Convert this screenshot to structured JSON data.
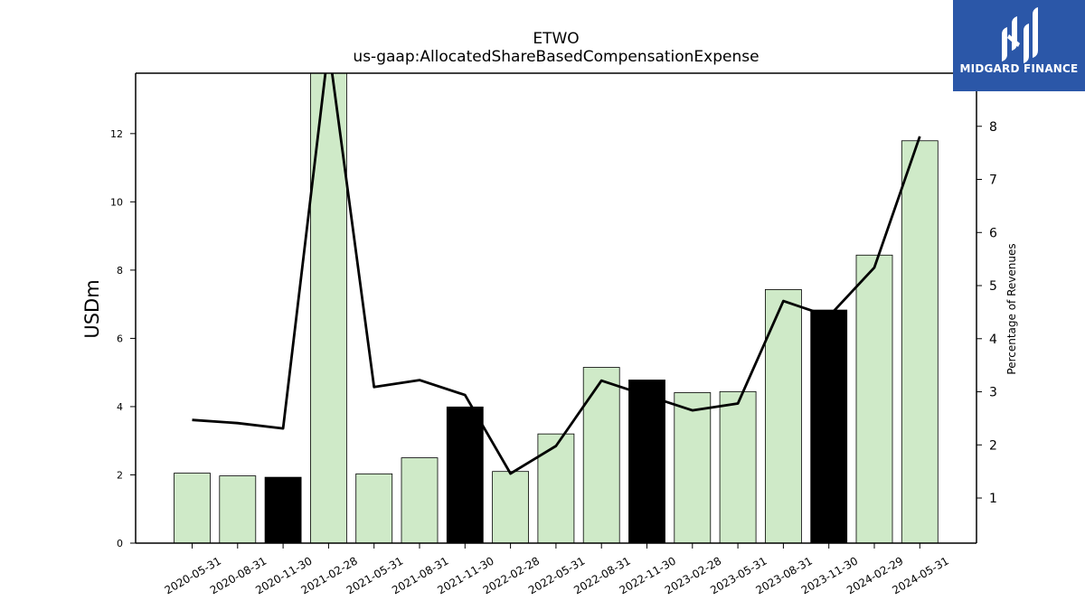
{
  "chart_data": {
    "type": "bar",
    "title": "ETWO",
    "subtitle": "us-gaap:AllocatedShareBasedCompensationExpense",
    "ylabel": "USDm",
    "y2label": "Percentage of Revenues",
    "ylim": [
      0,
      13.77
    ],
    "y2lim": [
      0.15,
      9.0
    ],
    "yticks": [
      0,
      2,
      4,
      6,
      8,
      10,
      12
    ],
    "y2ticks": [
      1,
      2,
      3,
      4,
      5,
      6,
      7,
      8
    ],
    "grid": false,
    "categories": [
      "2020-05-31",
      "2020-08-31",
      "2020-11-30",
      "2021-02-28",
      "2021-05-31",
      "2021-08-31",
      "2021-11-30",
      "2022-02-28",
      "2022-05-31",
      "2022-08-31",
      "2022-11-30",
      "2023-02-28",
      "2023-05-31",
      "2023-08-31",
      "2023-11-30",
      "2024-02-29",
      "2024-05-31"
    ],
    "series": [
      {
        "kind": "bar",
        "axis": "left",
        "values": [
          2.05,
          1.97,
          1.93,
          13.77,
          2.03,
          2.5,
          3.99,
          2.1,
          3.2,
          5.15,
          4.78,
          4.41,
          4.44,
          7.43,
          6.83,
          8.44,
          11.79
        ],
        "highlight": [
          false,
          false,
          true,
          false,
          false,
          false,
          true,
          false,
          false,
          false,
          true,
          false,
          false,
          false,
          true,
          false,
          false
        ]
      },
      {
        "kind": "line",
        "axis": "right",
        "values": [
          2.47,
          2.41,
          2.31,
          9.5,
          3.09,
          3.22,
          2.94,
          1.46,
          1.98,
          3.21,
          2.93,
          2.65,
          2.78,
          4.71,
          4.42,
          5.34,
          7.81
        ]
      }
    ],
    "colors": {
      "bar": "#cfeac8",
      "bar_highlight": "#000000",
      "bar_edge": "#000000",
      "line": "#000000"
    }
  },
  "logo": {
    "text": "MIDGARD FINANCE",
    "background": "#2b57a8"
  }
}
